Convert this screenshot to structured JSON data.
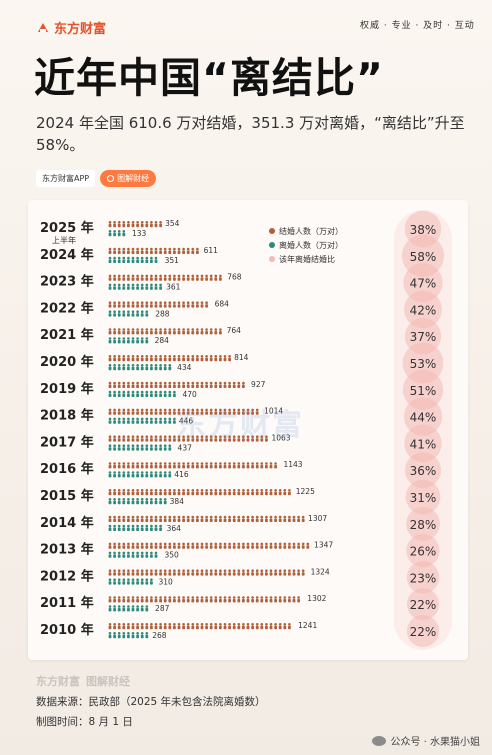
{
  "header": {
    "brand": "东方财富",
    "slogan": "权威 · 专业 · 及时 · 互动"
  },
  "title": "近年中国“离结比”",
  "subtitle": "2024 年全国 610.6 万对结婚，351.3 万对离婚，“离结比”升至 58%。",
  "tags": {
    "app": "东方财富APP",
    "button": "图解财经"
  },
  "watermark": "东方财富",
  "legend": {
    "marriage": "结婚人数（万对）",
    "divorce": "离婚人数（万对）",
    "ratio": "该年离婚结婚比"
  },
  "chart_data": {
    "type": "bar",
    "categories": [
      "2025 年",
      "2024 年",
      "2023 年",
      "2022 年",
      "2021 年",
      "2020 年",
      "2019 年",
      "2018 年",
      "2017 年",
      "2016 年",
      "2015 年",
      "2014 年",
      "2013 年",
      "2012 年",
      "2011 年",
      "2010 年"
    ],
    "category_notes": [
      "上半年",
      "",
      "",
      "",
      "",
      "",
      "",
      "",
      "",
      "",
      "",
      "",
      "",
      "",
      "",
      ""
    ],
    "series": [
      {
        "name": "结婚人数（万对）",
        "color": "#b0603c",
        "values": [
          354,
          611,
          768,
          684,
          764,
          814,
          927,
          1014,
          1063,
          1143,
          1225,
          1307,
          1347,
          1324,
          1302,
          1241
        ]
      },
      {
        "name": "离婚人数（万对）",
        "color": "#2e8a7c",
        "values": [
          133,
          351,
          361,
          288,
          284,
          434,
          470,
          446,
          437,
          416,
          384,
          364,
          350,
          310,
          287,
          268
        ]
      },
      {
        "name": "该年离婚结婚比",
        "color": "#f4b9b4",
        "values": [
          "38%",
          "58%",
          "47%",
          "42%",
          "37%",
          "53%",
          "51%",
          "44%",
          "41%",
          "36%",
          "31%",
          "28%",
          "26%",
          "23%",
          "22%",
          "22%"
        ]
      }
    ]
  },
  "footer": {
    "brand": "东方财富",
    "brand2": "图解财经",
    "source": "数据来源：民政部（2025 年未包含法院离婚数）",
    "time": "制图时间：8 月 1 日",
    "wechat": "公众号 · 水果猫小姐"
  }
}
